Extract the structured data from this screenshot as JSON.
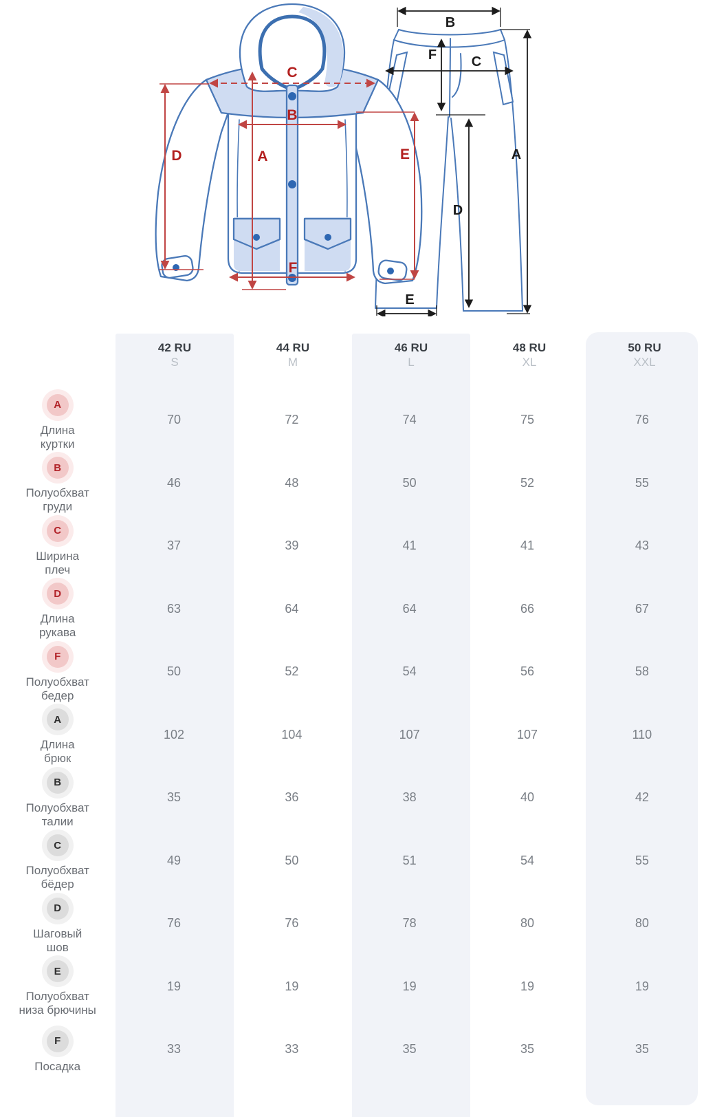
{
  "diagram": {
    "jacket": {
      "letters": {
        "a": "A",
        "b": "B",
        "c": "C",
        "d": "D",
        "e": "E",
        "f": "F"
      }
    },
    "pants": {
      "letters": {
        "a": "A",
        "b": "B",
        "c": "C",
        "d": "D",
        "e": "E",
        "f": "F"
      }
    }
  },
  "table": {
    "columns": [
      {
        "ru": "42 RU",
        "intl": "S"
      },
      {
        "ru": "44 RU",
        "intl": "M"
      },
      {
        "ru": "46 RU",
        "intl": "L"
      },
      {
        "ru": "48 RU",
        "intl": "XL"
      },
      {
        "ru": "50 RU",
        "intl": "XXL"
      }
    ],
    "rows": [
      {
        "letter": "A",
        "group": "jacket",
        "label": "Длина куртки",
        "label_lines": [
          "Длина",
          "куртки"
        ],
        "values": [
          "70",
          "72",
          "74",
          "75",
          "76"
        ]
      },
      {
        "letter": "B",
        "group": "jacket",
        "label": "Полуобхват груди",
        "label_lines": [
          "Полуобхват",
          "груди"
        ],
        "values": [
          "46",
          "48",
          "50",
          "52",
          "55"
        ]
      },
      {
        "letter": "C",
        "group": "jacket",
        "label": "Ширина плеч",
        "label_lines": [
          "Ширина",
          "плеч"
        ],
        "values": [
          "37",
          "39",
          "41",
          "41",
          "43"
        ]
      },
      {
        "letter": "D",
        "group": "jacket",
        "label": "Длина рукава",
        "label_lines": [
          "Длина",
          "рукава"
        ],
        "values": [
          "63",
          "64",
          "64",
          "66",
          "67"
        ]
      },
      {
        "letter": "F",
        "group": "jacket",
        "label": "Полуобхват бедер",
        "label_lines": [
          "Полуобхват",
          "бедер"
        ],
        "values": [
          "50",
          "52",
          "54",
          "56",
          "58"
        ]
      },
      {
        "letter": "A",
        "group": "pants",
        "label": "Длина брюк",
        "label_lines": [
          "Длина",
          "брюк"
        ],
        "values": [
          "102",
          "104",
          "107",
          "107",
          "110"
        ]
      },
      {
        "letter": "B",
        "group": "pants",
        "label": "Полуобхват талии",
        "label_lines": [
          "Полуобхват",
          "талии"
        ],
        "values": [
          "35",
          "36",
          "38",
          "40",
          "42"
        ]
      },
      {
        "letter": "C",
        "group": "pants",
        "label": "Полуобхват бёдер",
        "label_lines": [
          "Полуобхват",
          "бёдер"
        ],
        "values": [
          "49",
          "50",
          "51",
          "54",
          "55"
        ]
      },
      {
        "letter": "D",
        "group": "pants",
        "label": "Шаговый шов",
        "label_lines": [
          "Шаговый",
          "шов"
        ],
        "values": [
          "76",
          "76",
          "78",
          "80",
          "80"
        ]
      },
      {
        "letter": "E",
        "group": "pants",
        "label": "Полуобхват низа брючины",
        "label_lines": [
          "Полуобхват",
          "низа брючины"
        ],
        "values": [
          "19",
          "19",
          "19",
          "19",
          "19"
        ]
      },
      {
        "letter": "F",
        "group": "pants",
        "label": "Посадка",
        "label_lines": [
          "Посадка"
        ],
        "values": [
          "33",
          "33",
          "35",
          "35",
          "35"
        ]
      }
    ]
  },
  "colors": {
    "outline_blue": "#4a79b8",
    "fill_light_blue": "#cfdcf2",
    "button_blue": "#2e67b2",
    "measure_red": "#c04543",
    "letter_red": "#b3201f",
    "measure_black": "#1c1c1c",
    "column_shade": "#f1f3f8",
    "badge_red_bg": "#f2c8c8",
    "badge_gray_bg": "#dcdcdc"
  }
}
